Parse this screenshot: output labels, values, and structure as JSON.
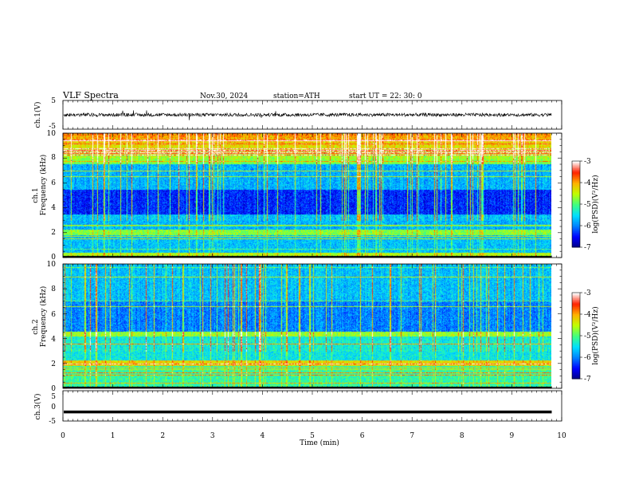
{
  "header": {
    "title": "VLF  Spectra",
    "date": "Nov.30, 2024",
    "station": "station=ATH",
    "start_ut": "start  UT  =    22: 30: 0"
  },
  "chart_data": [
    {
      "type": "line",
      "panel": "ch1-waveform",
      "ylabel": "ch.1(V)",
      "ylim": [
        -5,
        5
      ],
      "yticks": [
        "5",
        "-5"
      ],
      "description_values": {
        "baseline_v": 0,
        "typical_amplitude_v": 1.2
      }
    },
    {
      "type": "heatmap",
      "panel": "ch1-spectrogram",
      "ylabel": "ch.1\nFrequency  (kHz)",
      "ylabel_top": "ch.1",
      "ylabel_bottom": "Frequency  (kHz)",
      "ylim": [
        0,
        10
      ],
      "yticks": [
        "0",
        "2",
        "4",
        "6",
        "8",
        "10"
      ],
      "colorbar": {
        "label": "log(PSD)(V²/Hz)",
        "ticks": [
          "-3",
          "-4",
          "-5",
          "-6",
          "-7"
        ],
        "range": [
          -7,
          -3
        ]
      }
    },
    {
      "type": "heatmap",
      "panel": "ch2-spectrogram",
      "ylabel_top": "ch.2",
      "ylabel_bottom": "Frequency  (kHz)",
      "ylim": [
        0,
        10
      ],
      "yticks": [
        "0",
        "2",
        "4",
        "6",
        "8",
        "10"
      ],
      "colorbar": {
        "label": "log(PSD)(V²/Hz)",
        "ticks": [
          "-3",
          "-4",
          "-5",
          "-6",
          "-7"
        ],
        "range": [
          -7,
          -3
        ]
      }
    },
    {
      "type": "line",
      "panel": "ch3-waveform",
      "ylabel": "ch.3(V)",
      "ylim": [
        -5,
        5
      ],
      "yticks": [
        "5",
        "0",
        "-5"
      ],
      "description_values": {
        "baseline_v": -2
      }
    }
  ],
  "xaxis": {
    "label": "Time  (min)",
    "range": [
      0,
      10
    ],
    "ticks": [
      "0",
      "1",
      "2",
      "3",
      "4",
      "5",
      "6",
      "7",
      "8",
      "9",
      "10"
    ],
    "data_end_min": 9.8
  },
  "colors": {
    "cmap": [
      "#000080",
      "#0000ff",
      "#0080ff",
      "#00e0ff",
      "#40ff80",
      "#c0ff00",
      "#ffb000",
      "#ff2000",
      "#ffffff"
    ]
  }
}
